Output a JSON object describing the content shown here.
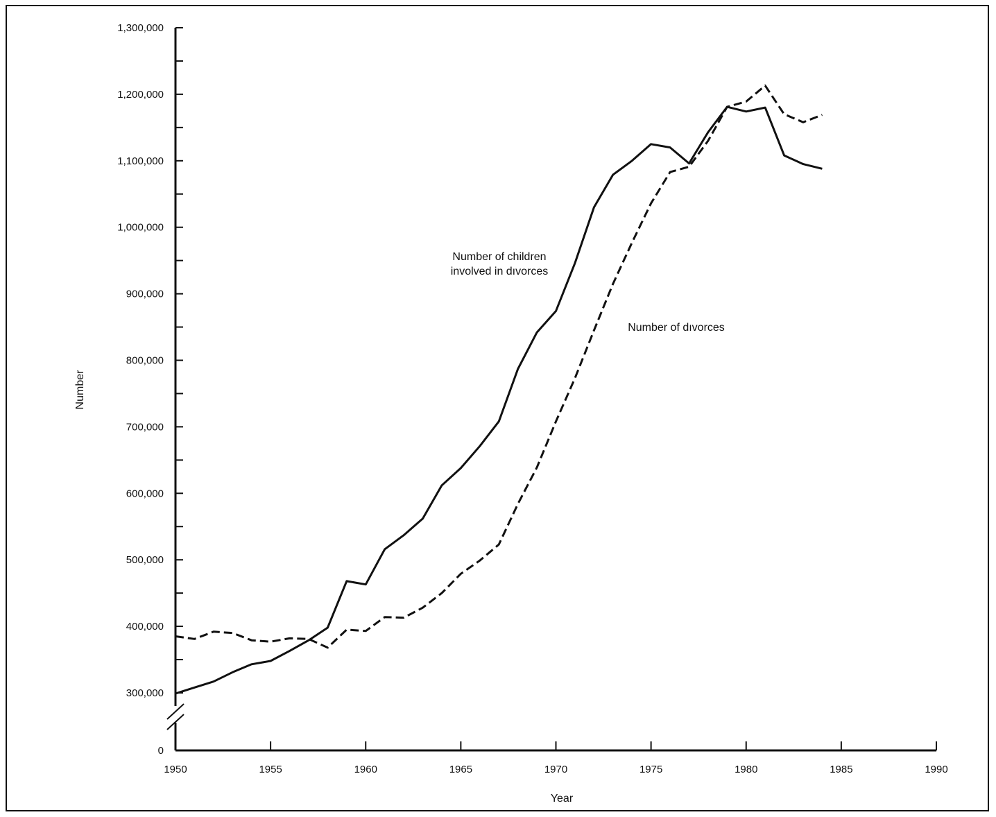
{
  "chart_data": {
    "type": "line",
    "xlabel": "Year",
    "ylabel": "Number",
    "xlim": [
      1950,
      1990
    ],
    "ylim": [
      300000,
      1300000
    ],
    "y_axis_break": true,
    "y_zero_label": "0",
    "x_ticks": [
      "1950",
      "1955",
      "1960",
      "1965",
      "1970",
      "1975",
      "1980",
      "1985",
      "1990"
    ],
    "y_ticks": [
      "300,000",
      "400,000",
      "500,000",
      "600,000",
      "700,000",
      "800,000",
      "900,000",
      "1,000,000",
      "1,100,000",
      "1,200,000",
      "1,300,000"
    ],
    "grid": false,
    "series": [
      {
        "name": "Number of children involved in divorces",
        "style": "solid",
        "x": [
          1950,
          1951,
          1952,
          1953,
          1954,
          1955,
          1956,
          1957,
          1958,
          1959,
          1960,
          1961,
          1962,
          1963,
          1964,
          1965,
          1966,
          1967,
          1968,
          1969,
          1970,
          1971,
          1972,
          1973,
          1974,
          1975,
          1976,
          1977,
          1978,
          1979,
          1980,
          1981,
          1982,
          1983,
          1984
        ],
        "values": [
          299000,
          308000,
          317000,
          331000,
          343000,
          348000,
          363000,
          379000,
          398000,
          468000,
          463000,
          516000,
          537000,
          562000,
          612000,
          638000,
          671000,
          708000,
          787000,
          842000,
          874000,
          946000,
          1030000,
          1079000,
          1100000,
          1125000,
          1120000,
          1096000,
          1143000,
          1181000,
          1174000,
          1180000,
          1108000,
          1095000,
          1088000
        ]
      },
      {
        "name": "Number of divorces",
        "style": "dashed",
        "x": [
          1950,
          1951,
          1952,
          1953,
          1954,
          1955,
          1956,
          1957,
          1958,
          1959,
          1960,
          1961,
          1962,
          1963,
          1964,
          1965,
          1966,
          1967,
          1968,
          1969,
          1970,
          1971,
          1972,
          1973,
          1974,
          1975,
          1976,
          1977,
          1978,
          1979,
          1980,
          1981,
          1982,
          1983,
          1984
        ],
        "values": [
          385000,
          381000,
          392000,
          390000,
          379000,
          377000,
          382000,
          381000,
          368000,
          395000,
          393000,
          414000,
          413000,
          428000,
          450000,
          479000,
          499000,
          523000,
          584000,
          639000,
          708000,
          773000,
          845000,
          915000,
          977000,
          1036000,
          1083000,
          1091000,
          1130000,
          1181000,
          1189000,
          1213000,
          1170000,
          1158000,
          1169000
        ]
      }
    ],
    "annotations": [
      {
        "lines": [
          "Number of children",
          "involved in dıvorces"
        ]
      },
      {
        "lines": [
          "Number of dıvorces"
        ]
      }
    ]
  }
}
